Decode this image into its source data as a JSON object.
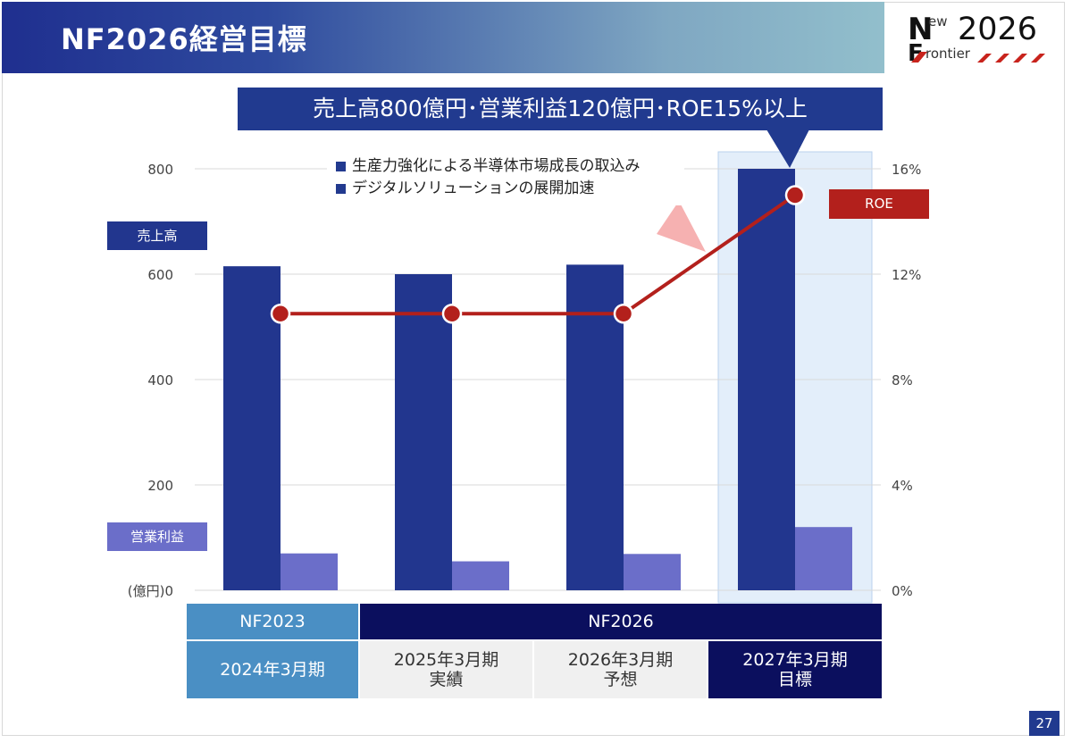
{
  "page": {
    "title": "NF2026経営目標",
    "page_number": "27"
  },
  "logo": {
    "line1_left": "N",
    "line1_small": "ew",
    "year": "2026",
    "line2_left": "F",
    "line2_small": "rontier"
  },
  "headline": "売上高800億円･営業利益120億円･ROE15%以上",
  "callout_items": [
    "生産力強化による半導体市場成長の取込み",
    "デジタルソリューションの展開加速"
  ],
  "legend": {
    "sales": "売上高",
    "operating_profit": "営業利益",
    "roe": "ROE"
  },
  "colors": {
    "sales": "#22368e",
    "operating_profit": "#6b6ec9",
    "roe": "#b3201c",
    "highlight": "#e3eefa"
  },
  "chart_data": {
    "type": "bar",
    "categories": [
      "2024年3月期",
      "2025年3月期 実績",
      "2026年3月期 予想",
      "2027年3月期 目標"
    ],
    "series": [
      {
        "name": "売上高",
        "axis": "left",
        "type": "bar",
        "values": [
          615,
          600,
          618,
          800
        ]
      },
      {
        "name": "営業利益",
        "axis": "left",
        "type": "bar",
        "values": [
          70,
          55,
          69,
          120
        ]
      },
      {
        "name": "ROE",
        "axis": "right",
        "type": "line",
        "values": [
          10.5,
          10.5,
          10.5,
          15
        ]
      }
    ],
    "y_left": {
      "unit_label": "(億円)",
      "ticks": [
        "0",
        "200",
        "400",
        "600",
        "800"
      ],
      "min": 0,
      "max": 800
    },
    "y_right": {
      "ticks": [
        "0%",
        "4%",
        "8%",
        "12%",
        "16%"
      ],
      "min": 0,
      "max": 16
    },
    "grid": true,
    "highlight_category": 3
  },
  "category_table": {
    "groups": [
      "NF2023",
      "NF2026"
    ],
    "periods": [
      {
        "line1": "2024年3月期",
        "line2": ""
      },
      {
        "line1": "2025年3月期",
        "line2": "実績"
      },
      {
        "line1": "2026年3月期",
        "line2": "予想"
      },
      {
        "line1": "2027年3月期",
        "line2": "目標"
      }
    ]
  }
}
